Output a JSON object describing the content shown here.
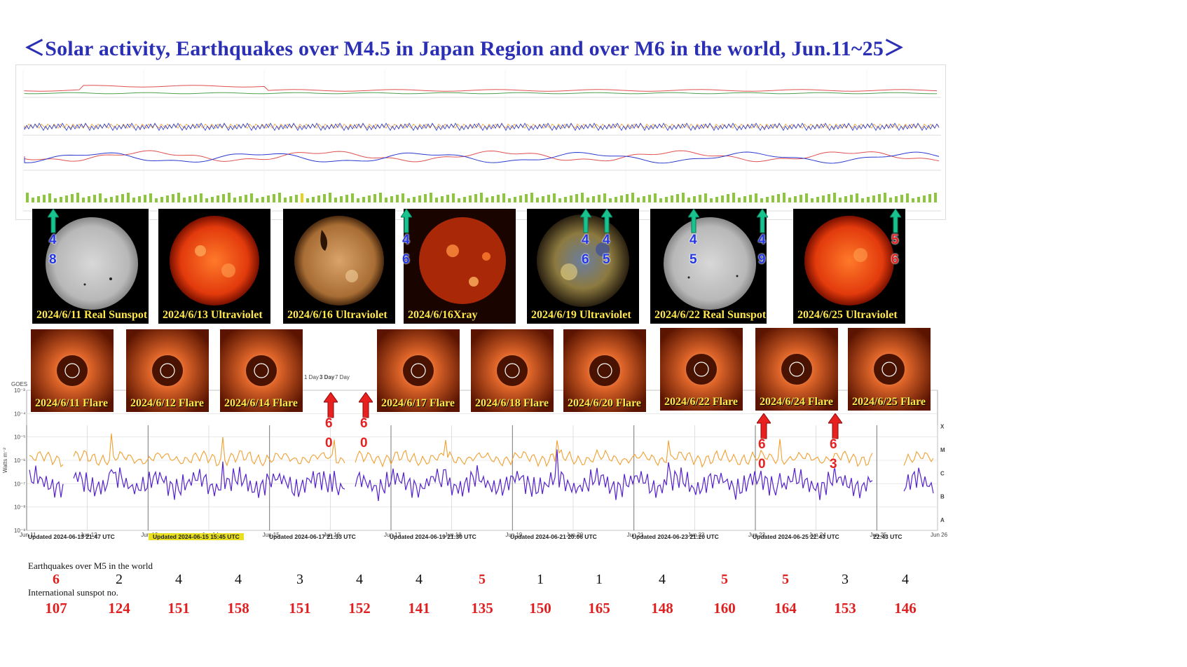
{
  "title": "＜Solar activity, Earthquakes over M4.5 in Japan Region and over M6 in the world, Jun.11~25＞",
  "image_tiles": [
    {
      "label": "2024/6/11 Real Sunspot",
      "kind": "sunspot"
    },
    {
      "label": "2024/6/13 Ultraviolet",
      "kind": "uv-red"
    },
    {
      "label": "2024/6/16 Ultraviolet",
      "kind": "uv-gold"
    },
    {
      "label": "2024/6/16Xray",
      "kind": "xray"
    },
    {
      "label": "2024/6/19 Ultraviolet",
      "kind": "uv-multi"
    },
    {
      "label": "2024/6/22 Real Sunspot",
      "kind": "sunspot"
    },
    {
      "label": "2024/6/25 Ultraviolet",
      "kind": "uv-red"
    }
  ],
  "flare_tiles": [
    {
      "label": "2024/6/11 Flare"
    },
    {
      "label": "2024/6/12 Flare"
    },
    {
      "label": "2024/6/14 Flare"
    },
    {
      "label": "2024/6/17 Flare"
    },
    {
      "label": "2024/6/18 Flare"
    },
    {
      "label": "2024/6/20 Flare"
    },
    {
      "label": "2024/6/22 Flare"
    },
    {
      "label": "2024/6/24 Flare"
    },
    {
      "label": "2024/6/25 Flare"
    }
  ],
  "japan_quake_marks": [
    {
      "digits": [
        "4",
        "8"
      ]
    },
    {
      "digits": [
        "4",
        "6"
      ]
    },
    {
      "digits": [
        "4",
        "6"
      ]
    },
    {
      "digits": [
        "4",
        "5"
      ]
    },
    {
      "digits": [
        "4",
        "5"
      ]
    },
    {
      "digits": [
        "4",
        "9"
      ]
    },
    {
      "digits": [
        "5",
        "6"
      ]
    }
  ],
  "world_quake_marks": [
    {
      "digits": [
        "6",
        "0"
      ]
    },
    {
      "digits": [
        "6",
        "0"
      ]
    },
    {
      "digits": [
        "6",
        "0"
      ]
    },
    {
      "digits": [
        "6",
        "3"
      ]
    }
  ],
  "goes_chart": {
    "ylabel": "Watts m⁻²",
    "y_ticks": [
      "10⁻³",
      "10⁻⁴",
      "10⁻⁵",
      "10⁻⁶",
      "10⁻⁷",
      "10⁻⁸",
      "10⁻⁹"
    ],
    "class_labels": [
      "X",
      "M",
      "C",
      "B",
      "A"
    ],
    "x_ticks": [
      "Jun 11",
      "Jun 12",
      "Jun 13",
      "Jun 14",
      "Jun 15",
      "Jun 16",
      "Jun 17",
      "Jun 18",
      "Jun 19",
      "Jun 20",
      "Jun 21",
      "Jun 22",
      "Jun 23",
      "Jun 24",
      "Jun 25",
      "Jun 26"
    ],
    "updates": [
      "Updated 2024-06-13 21:47 UTC",
      "Updated 2024-06-15 15:45 UTC",
      "Updated 2024-06-17 21:33 UTC",
      "Updated 2024-06-19 21:30 UTC",
      "Updated 2024-06-21 20:06 UTC",
      "Updated 2024-06-23 21:20 UTC",
      "Updated 2024-06-25 22:43 UTC",
      "22:43 UTC"
    ],
    "tabs": [
      "1 Day",
      "3 Day",
      "7 Day"
    ],
    "goes_label": "GOES",
    "colors": {
      "long": "#f0a030",
      "short": "#5522cc"
    }
  },
  "table": {
    "eq_label": "Earthquakes over M5 in the world",
    "ss_label": "International sunspot no.",
    "earthquakes": [
      {
        "value": "6",
        "color": "#e02020"
      },
      {
        "value": "2",
        "color": "#111111"
      },
      {
        "value": "4",
        "color": "#111111"
      },
      {
        "value": "4",
        "color": "#111111"
      },
      {
        "value": "3",
        "color": "#111111"
      },
      {
        "value": "4",
        "color": "#111111"
      },
      {
        "value": "4",
        "color": "#111111"
      },
      {
        "value": "5",
        "color": "#e02020"
      },
      {
        "value": "1",
        "color": "#111111"
      },
      {
        "value": "1",
        "color": "#111111"
      },
      {
        "value": "4",
        "color": "#111111"
      },
      {
        "value": "5",
        "color": "#e02020"
      },
      {
        "value": "5",
        "color": "#e02020"
      },
      {
        "value": "3",
        "color": "#111111"
      },
      {
        "value": "4",
        "color": "#111111"
      }
    ],
    "sunspots": [
      "107",
      "124",
      "151",
      "158",
      "151",
      "152",
      "141",
      "135",
      "150",
      "165",
      "148",
      "160",
      "164",
      "153",
      "146"
    ]
  }
}
